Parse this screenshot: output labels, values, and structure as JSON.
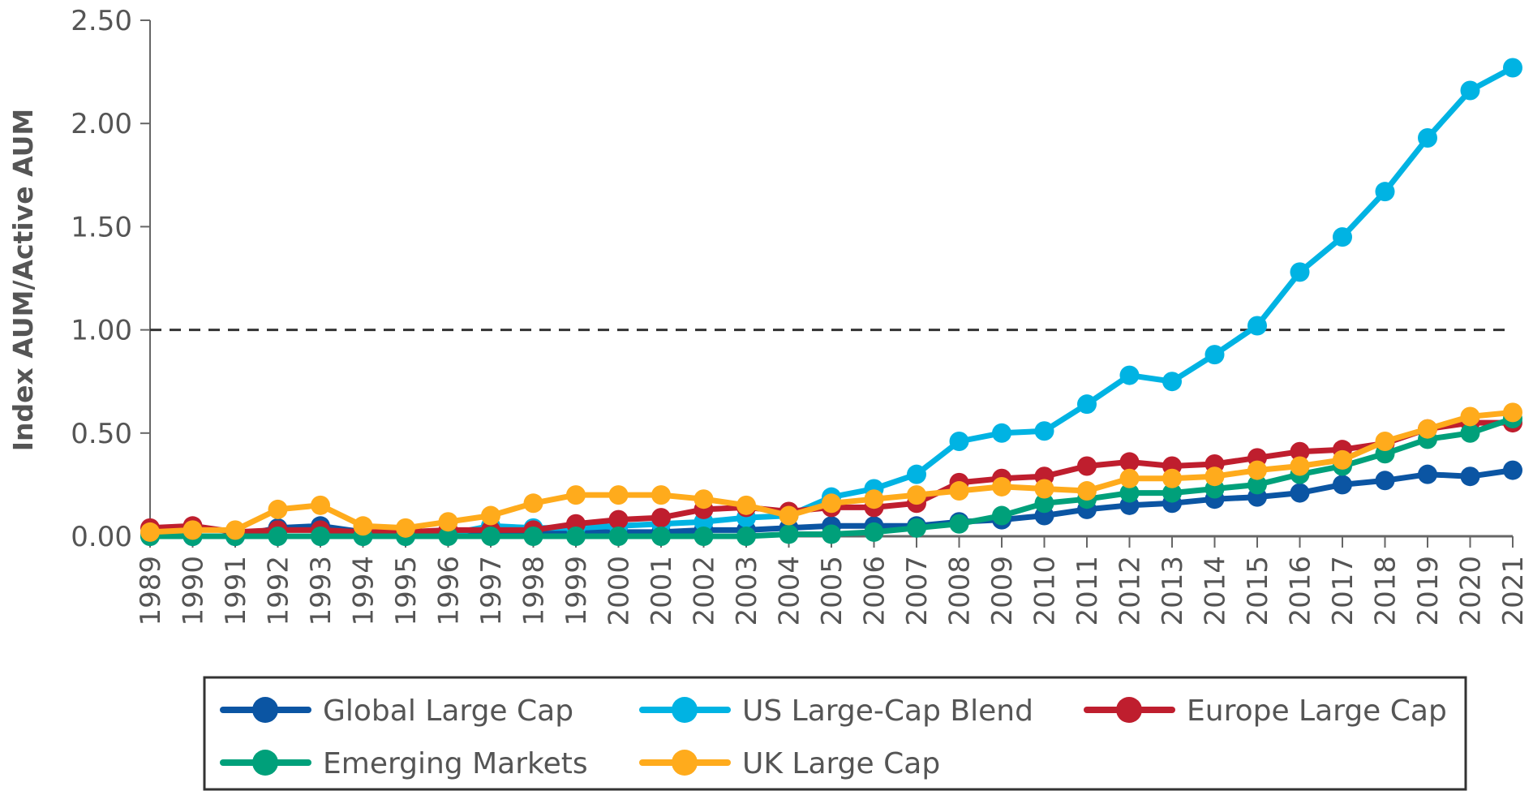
{
  "chart_data": {
    "type": "line",
    "title": "",
    "xlabel": "",
    "ylabel": "Index AUM/Active AUM",
    "ylim": [
      0,
      2.5
    ],
    "yticks": [
      "0.00",
      "0.50",
      "1.00",
      "1.50",
      "2.00",
      "2.50"
    ],
    "reference_line": {
      "value": 1.0,
      "style": "dashed"
    },
    "grid": false,
    "legend_position": "bottom",
    "x": [
      "1989",
      "1990",
      "1991",
      "1992",
      "1993",
      "1994",
      "1995",
      "1996",
      "1997",
      "1998",
      "1999",
      "2000",
      "2001",
      "2002",
      "2003",
      "2004",
      "2005",
      "2006",
      "2007",
      "2008",
      "2009",
      "2010",
      "2011",
      "2012",
      "2013",
      "2014",
      "2015",
      "2016",
      "2017",
      "2018",
      "2019",
      "2020",
      "2021"
    ],
    "series": [
      {
        "name": "Global Large Cap",
        "color": "#0b55a3",
        "values": [
          0.01,
          0.0,
          0.0,
          0.04,
          0.05,
          0.02,
          0.02,
          0.02,
          0.02,
          0.02,
          0.02,
          0.02,
          0.02,
          0.03,
          0.03,
          0.04,
          0.05,
          0.05,
          0.05,
          0.07,
          0.08,
          0.1,
          0.13,
          0.15,
          0.16,
          0.18,
          0.19,
          0.21,
          0.25,
          0.27,
          0.3,
          0.29,
          0.32
        ]
      },
      {
        "name": "US Large-Cap Blend",
        "color": "#00b3e3",
        "values": [
          0.0,
          0.0,
          0.0,
          0.0,
          0.0,
          0.0,
          0.0,
          0.01,
          0.05,
          0.04,
          0.04,
          0.05,
          0.06,
          0.07,
          0.09,
          0.1,
          0.19,
          0.23,
          0.3,
          0.46,
          0.5,
          0.51,
          0.64,
          0.78,
          0.75,
          0.88,
          1.02,
          1.28,
          1.45,
          1.67,
          1.93,
          2.16,
          2.27
        ]
      },
      {
        "name": "Europe Large Cap",
        "color": "#bf1e2e",
        "values": [
          0.04,
          0.05,
          0.02,
          0.03,
          0.03,
          0.02,
          0.02,
          0.03,
          0.03,
          0.03,
          0.06,
          0.08,
          0.09,
          0.13,
          0.14,
          0.12,
          0.14,
          0.14,
          0.16,
          0.26,
          0.28,
          0.29,
          0.34,
          0.36,
          0.34,
          0.35,
          0.38,
          0.41,
          0.42,
          0.45,
          0.52,
          0.55,
          0.55
        ]
      },
      {
        "name": "Emerging Markets",
        "color": "#00a07a",
        "values": [
          0.0,
          0.0,
          0.0,
          0.0,
          0.0,
          0.0,
          0.0,
          0.0,
          0.0,
          0.0,
          0.0,
          0.0,
          0.0,
          0.0,
          0.0,
          0.01,
          0.01,
          0.02,
          0.04,
          0.06,
          0.1,
          0.16,
          0.18,
          0.21,
          0.21,
          0.23,
          0.25,
          0.3,
          0.34,
          0.4,
          0.47,
          0.5,
          0.57
        ]
      },
      {
        "name": "UK Large Cap",
        "color": "#ffab1c",
        "values": [
          0.02,
          0.03,
          0.03,
          0.13,
          0.15,
          0.05,
          0.04,
          0.07,
          0.1,
          0.16,
          0.2,
          0.2,
          0.2,
          0.18,
          0.15,
          0.1,
          0.16,
          0.18,
          0.2,
          0.22,
          0.24,
          0.23,
          0.22,
          0.28,
          0.28,
          0.29,
          0.32,
          0.34,
          0.37,
          0.46,
          0.52,
          0.58,
          0.6
        ]
      }
    ]
  }
}
